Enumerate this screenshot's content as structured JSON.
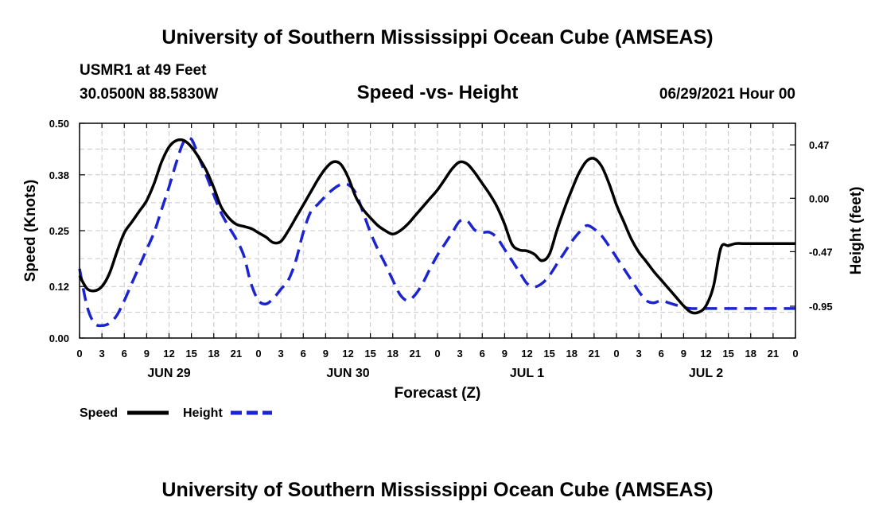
{
  "page": {
    "title_top": "University of Southern Mississippi Ocean Cube (AMSEAS)",
    "title_bottom": "University of Southern Mississippi Ocean Cube (AMSEAS)",
    "station": "USMR1 at 49 Feet",
    "location": "30.0500N  88.5830W",
    "datetime": "06/29/2021 Hour 00"
  },
  "chart_data": {
    "type": "line",
    "title": "Speed -vs- Height",
    "xlabel": "Forecast (Z)",
    "ylabel": "Speed (Knots)",
    "ylabel_right": "Height (feet)",
    "xlim": [
      0,
      96
    ],
    "ylim": [
      0,
      0.5
    ],
    "ylim_right": [
      -1.23,
      0.66
    ],
    "grid": true,
    "x_ticks": [
      0,
      3,
      6,
      9,
      12,
      15,
      18,
      21,
      24,
      27,
      30,
      33,
      36,
      39,
      42,
      45,
      48,
      51,
      54,
      57,
      60,
      63,
      66,
      69,
      72,
      75,
      78,
      81,
      84,
      87,
      90,
      93,
      96
    ],
    "x_tick_labels": [
      "0",
      "3",
      "6",
      "9",
      "12",
      "15",
      "18",
      "21",
      "0",
      "3",
      "6",
      "9",
      "12",
      "15",
      "18",
      "21",
      "0",
      "3",
      "6",
      "9",
      "12",
      "15",
      "18",
      "21",
      "0",
      "3",
      "6",
      "9",
      "12",
      "15",
      "18",
      "21",
      "0"
    ],
    "day_labels": [
      {
        "x": 12,
        "label": "JUN 29"
      },
      {
        "x": 36,
        "label": "JUN 30"
      },
      {
        "x": 60,
        "label": "JUL 1"
      },
      {
        "x": 84,
        "label": "JUL 2"
      }
    ],
    "y_ticks_left": [
      0.0,
      0.12,
      0.25,
      0.38,
      0.5
    ],
    "y_tick_labels_left": [
      "0.00",
      "0.12",
      "0.25",
      "0.38",
      "0.50"
    ],
    "y_ticks_right": [
      -0.95,
      -0.47,
      0.0,
      0.47
    ],
    "y_tick_labels_right": [
      "-0.95",
      "-0.47",
      "0.00",
      "0.47"
    ],
    "series": [
      {
        "name": "Speed",
        "axis": "left",
        "color": "#000000",
        "style": "solid",
        "x": [
          0,
          1,
          2,
          3,
          4,
          5,
          6,
          7,
          8,
          9,
          10,
          11,
          12,
          13,
          14,
          15,
          16,
          17,
          18,
          19,
          20,
          21,
          22,
          23,
          24,
          25,
          26,
          27,
          28,
          29,
          30,
          31,
          32,
          33,
          34,
          35,
          36,
          37,
          38,
          39,
          40,
          41,
          42,
          43,
          44,
          45,
          46,
          47,
          48,
          49,
          50,
          51,
          52,
          53,
          54,
          55,
          56,
          57,
          58,
          59,
          60,
          61,
          62,
          63,
          64,
          65,
          66,
          67,
          68,
          69,
          70,
          71,
          72,
          73,
          74,
          75,
          76,
          77,
          78,
          79,
          80,
          81,
          82,
          83,
          84,
          85,
          86,
          87,
          88,
          89,
          90,
          91,
          92,
          93,
          94,
          95,
          96
        ],
        "values": [
          0.145,
          0.115,
          0.11,
          0.12,
          0.15,
          0.2,
          0.245,
          0.27,
          0.295,
          0.32,
          0.36,
          0.41,
          0.445,
          0.46,
          0.46,
          0.445,
          0.42,
          0.39,
          0.35,
          0.305,
          0.28,
          0.265,
          0.26,
          0.255,
          0.245,
          0.235,
          0.222,
          0.225,
          0.25,
          0.28,
          0.31,
          0.34,
          0.37,
          0.395,
          0.41,
          0.405,
          0.375,
          0.33,
          0.3,
          0.28,
          0.262,
          0.25,
          0.242,
          0.25,
          0.265,
          0.285,
          0.305,
          0.325,
          0.345,
          0.37,
          0.395,
          0.41,
          0.405,
          0.385,
          0.36,
          0.335,
          0.305,
          0.265,
          0.218,
          0.205,
          0.203,
          0.195,
          0.18,
          0.195,
          0.25,
          0.3,
          0.345,
          0.385,
          0.412,
          0.418,
          0.4,
          0.36,
          0.31,
          0.27,
          0.23,
          0.2,
          0.178,
          0.155,
          0.135,
          0.115,
          0.095,
          0.075,
          0.06,
          0.06,
          0.075,
          0.12,
          0.21,
          0.215,
          0.22,
          0.22,
          0.22,
          0.22,
          0.22,
          0.22,
          0.22,
          0.22,
          0.22
        ]
      },
      {
        "name": "Height",
        "axis": "right",
        "color": "#1c24d0",
        "style": "dashed",
        "x": [
          0,
          1,
          2,
          3,
          4,
          5,
          6,
          7,
          8,
          9,
          10,
          11,
          12,
          13,
          14,
          15,
          16,
          17,
          18,
          19,
          20,
          21,
          22,
          23,
          24,
          25,
          26,
          27,
          28,
          29,
          30,
          31,
          32,
          33,
          34,
          35,
          36,
          37,
          38,
          39,
          40,
          41,
          42,
          43,
          44,
          45,
          46,
          47,
          48,
          49,
          50,
          51,
          52,
          53,
          54,
          55,
          56,
          57,
          58,
          59,
          60,
          61,
          62,
          63,
          64,
          65,
          66,
          67,
          68,
          69,
          70,
          71,
          72,
          73,
          74,
          75,
          76,
          77,
          78,
          79,
          80,
          81,
          82,
          83,
          84,
          85,
          86,
          87,
          88,
          89,
          90,
          91,
          92,
          93,
          94,
          95,
          96
        ],
        "values": [
          -0.62,
          -0.95,
          -1.1,
          -1.12,
          -1.1,
          -1.03,
          -0.9,
          -0.75,
          -0.6,
          -0.45,
          -0.3,
          -0.1,
          0.1,
          0.32,
          0.5,
          0.52,
          0.36,
          0.2,
          0.03,
          -0.13,
          -0.25,
          -0.36,
          -0.5,
          -0.75,
          -0.9,
          -0.93,
          -0.88,
          -0.8,
          -0.72,
          -0.55,
          -0.3,
          -0.12,
          -0.05,
          0.02,
          0.08,
          0.12,
          0.12,
          0.05,
          -0.12,
          -0.3,
          -0.45,
          -0.58,
          -0.72,
          -0.85,
          -0.9,
          -0.85,
          -0.75,
          -0.62,
          -0.5,
          -0.4,
          -0.3,
          -0.2,
          -0.2,
          -0.28,
          -0.3,
          -0.3,
          -0.35,
          -0.45,
          -0.55,
          -0.65,
          -0.75,
          -0.78,
          -0.75,
          -0.68,
          -0.58,
          -0.48,
          -0.38,
          -0.3,
          -0.24,
          -0.27,
          -0.33,
          -0.42,
          -0.52,
          -0.62,
          -0.72,
          -0.82,
          -0.9,
          -0.92,
          -0.9,
          -0.92,
          -0.94,
          -0.96,
          -0.97,
          -0.97,
          -0.97,
          -0.97,
          -0.97,
          -0.97,
          -0.97,
          -0.97,
          -0.97,
          -0.97,
          -0.97,
          -0.97,
          -0.97,
          -0.97,
          -0.97
        ]
      }
    ],
    "legend": [
      {
        "label": "Speed",
        "color": "#000000",
        "style": "solid"
      },
      {
        "label": "Height",
        "color": "#1c24d0",
        "style": "dashed"
      }
    ],
    "legend_position": "bottom-left"
  }
}
